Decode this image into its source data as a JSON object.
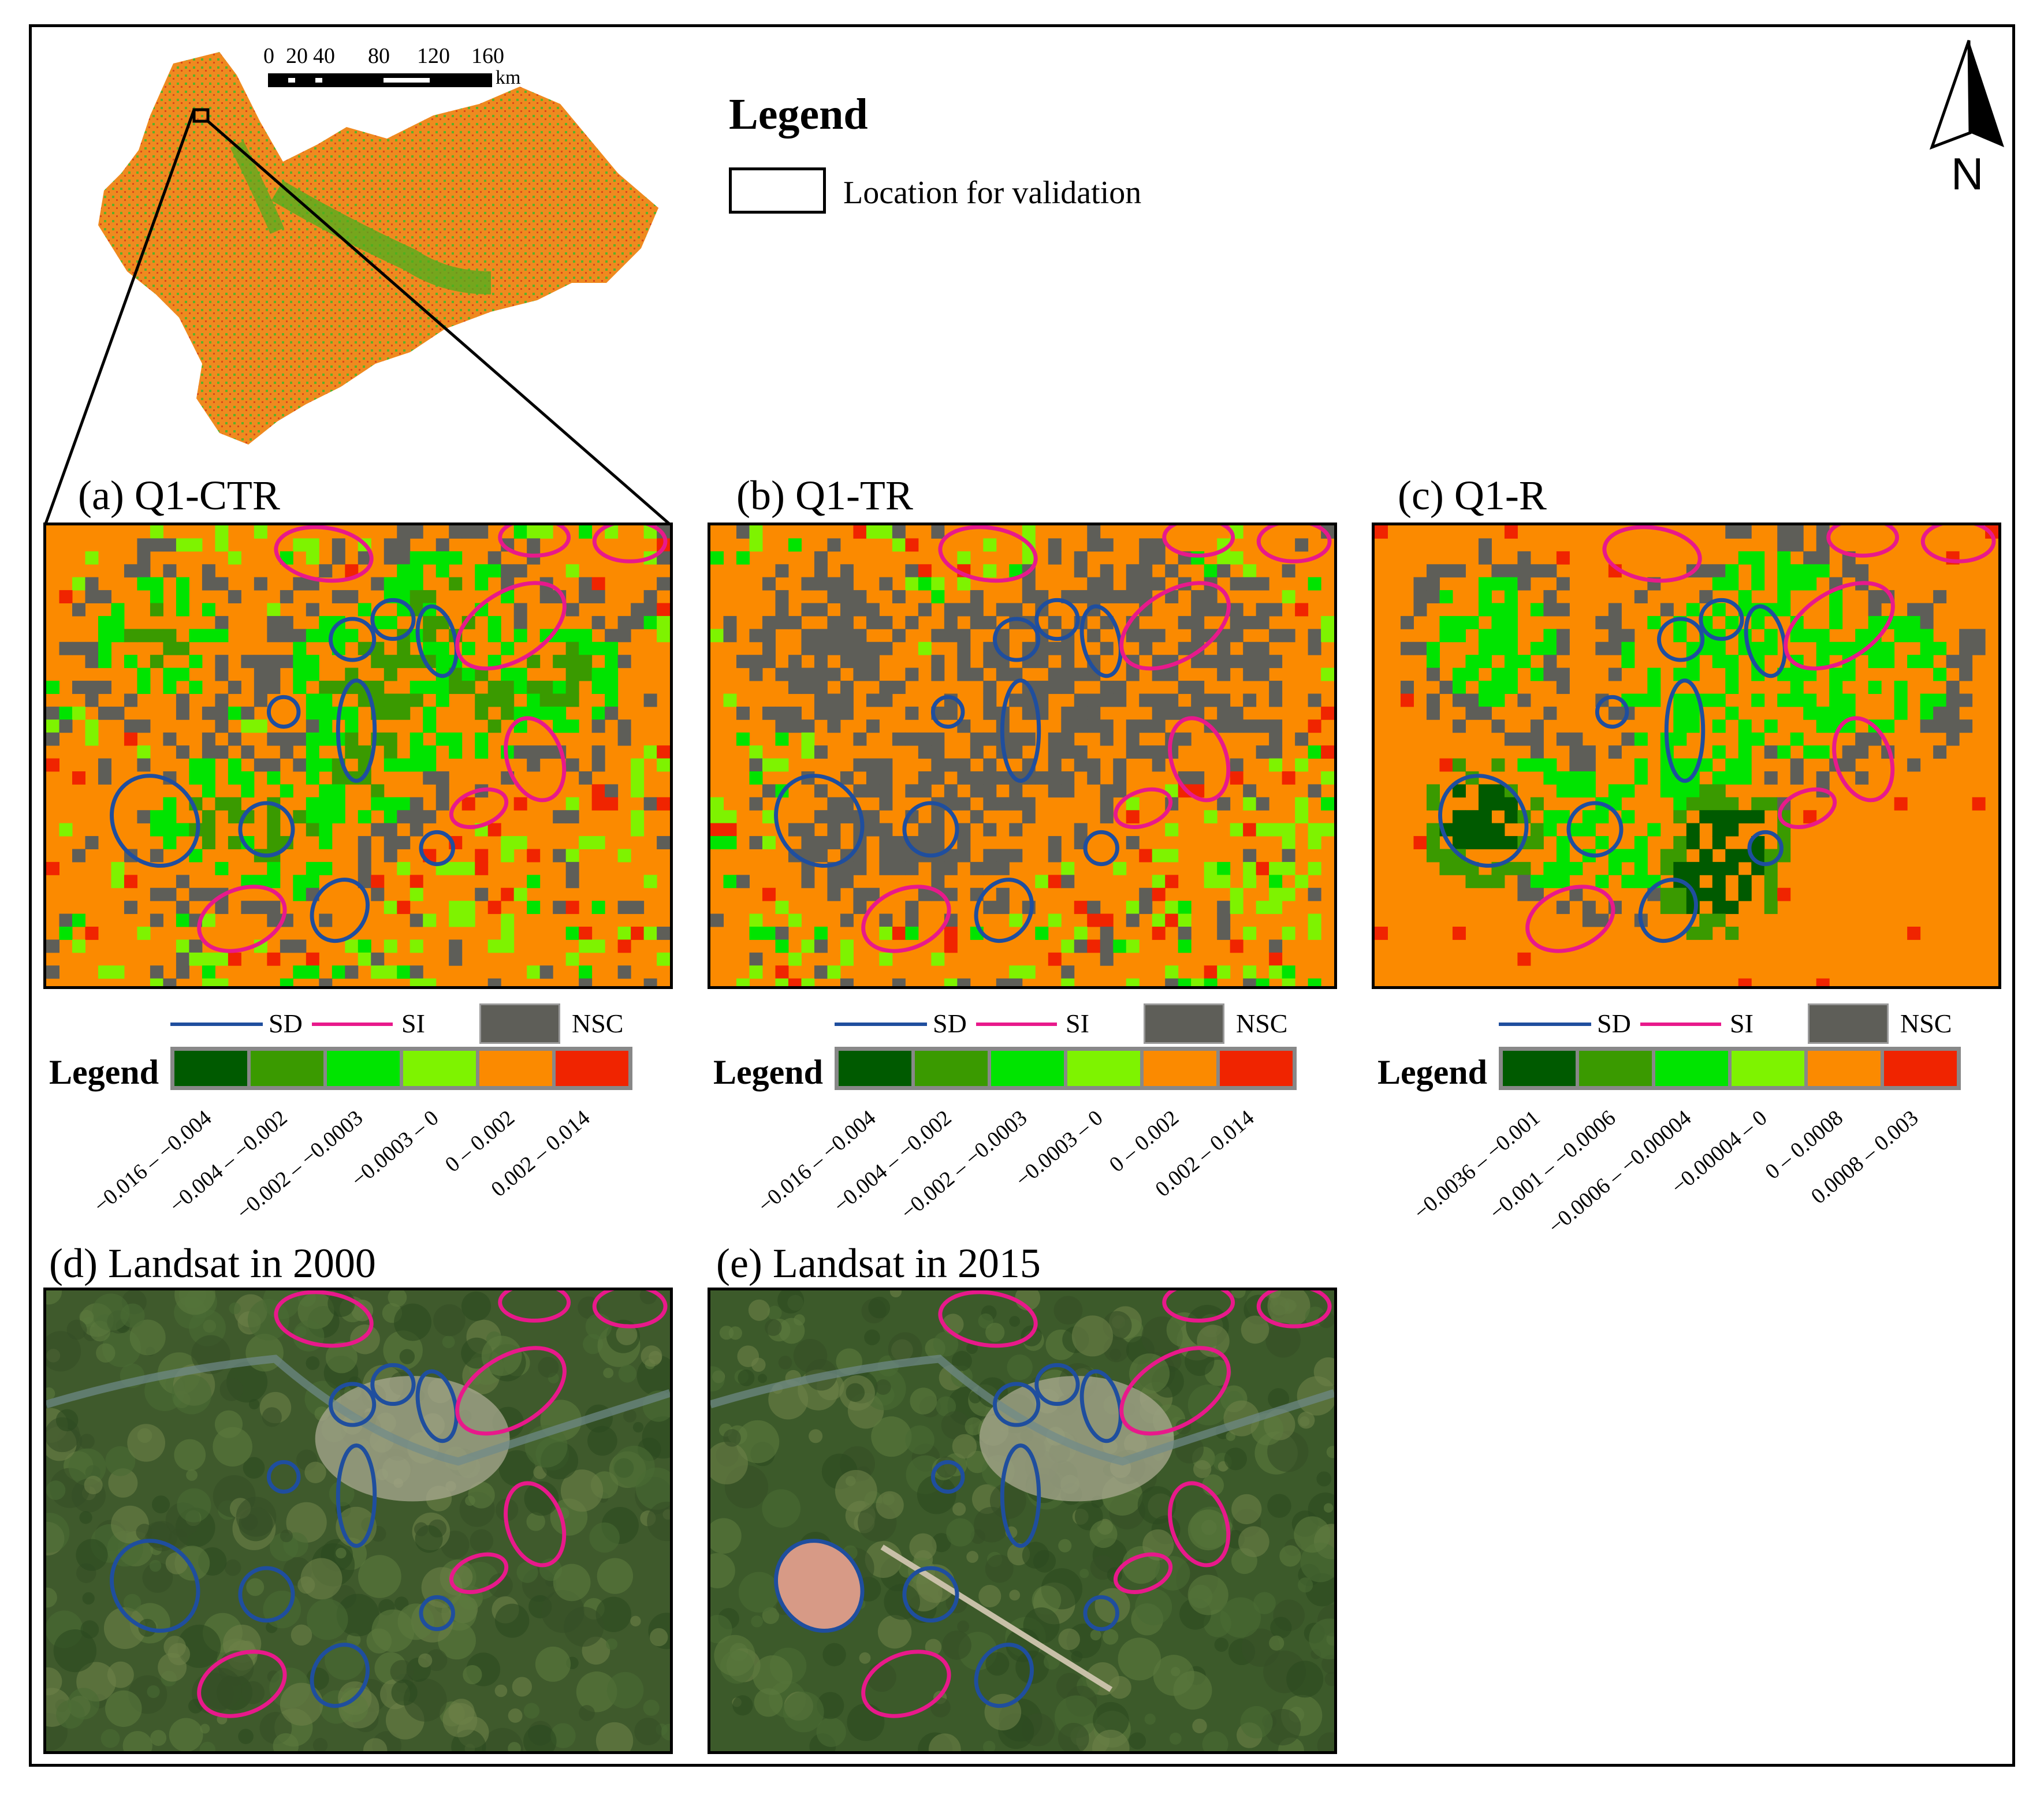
{
  "overview": {
    "scale_labels": [
      "0",
      "20",
      "40",
      "80",
      "120",
      "160"
    ],
    "scale_unit": "km",
    "colors": {
      "orange": "#f18a1c",
      "green": "#4caf1e"
    }
  },
  "main_legend": {
    "title": "Legend",
    "location_label": "Location for validation"
  },
  "north_arrow": {
    "label": "N"
  },
  "legend_shared": {
    "title": "Legend",
    "sd_label": "SD",
    "si_label": "SI",
    "nsc_label": "NSC",
    "sd_color": "#1f4e9e",
    "si_color": "#e8198b",
    "nsc_color": "#5e5e58",
    "class_colors": [
      "#005a00",
      "#3a9a00",
      "#00e400",
      "#7ef300",
      "#fb8a00",
      "#f02400"
    ]
  },
  "panels": [
    {
      "id": "a",
      "title": "(a) Q1-CTR",
      "ticks": [
        "-0.016 – -0.004",
        "-0.004 – -0.002",
        "-0.002 – -0.0003",
        "-0.0003 – 0",
        "0 – 0.002",
        "0.002 – 0.014"
      ]
    },
    {
      "id": "b",
      "title": "(b) Q1-TR",
      "ticks": [
        "-0.016 – -0.004",
        "-0.004 – -0.002",
        "-0.002 – -0.0003",
        "-0.0003 – 0",
        "0 – 0.002",
        "0.002 – 0.014"
      ]
    },
    {
      "id": "c",
      "title": "(c) Q1-R",
      "ticks": [
        "-0.0036 – -0.001",
        "-0.001 – -0.0006",
        "-0.0006 – -0.00004",
        "-0.00004 – 0",
        "0 – 0.0008",
        "0.0008 – 0.003"
      ]
    },
    {
      "id": "d",
      "title": "(d) Landsat in 2000"
    },
    {
      "id": "e",
      "title": "(e) Landsat in 2015"
    }
  ]
}
